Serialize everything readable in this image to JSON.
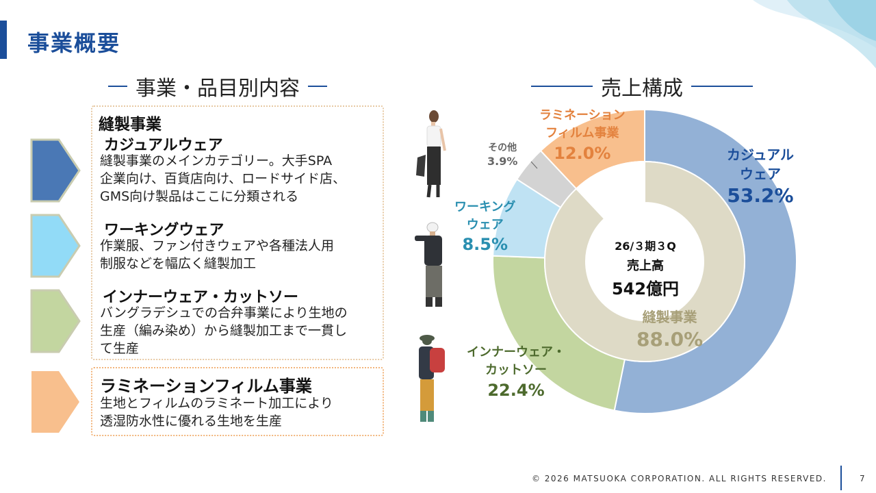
{
  "page": {
    "title": "事業概要",
    "footer": "© 2026 MATSUOKA CORPORATION. ALL RIGHTS RESERVED.",
    "page_number": "7"
  },
  "left": {
    "heading": "事業・品目別内容",
    "sewing": {
      "title": "縫製事業",
      "items": [
        {
          "title": "カジュアルウェア",
          "lines": [
            "縫製事業のメインカテゴリー。大手SPA",
            "企業向け、百貨店向け、ロードサイド店、",
            "GMS向け製品はここに分類される"
          ]
        },
        {
          "title": "ワーキングウェア",
          "lines": [
            "作業服、ファン付きウェアや各種法人用",
            "制服などを幅広く縫製加工"
          ]
        },
        {
          "title": "インナーウェア・カットソー",
          "lines": [
            "バングラデシュでの合弁事業により生地の",
            "生産（編み染め）から縫製加工まで一貫し",
            "て生産"
          ]
        }
      ]
    },
    "lamination": {
      "title": "ラミネーションフィルム事業",
      "lines": [
        "生地とフィルムのラミネート加工により",
        "透湿防水性に優れる生地を生産"
      ]
    }
  },
  "right": {
    "heading": "売上構成",
    "center": {
      "period": "26/３期３Q",
      "label": "売上高",
      "value": "542億円"
    }
  },
  "chart_data": {
    "type": "pie",
    "title": "売上構成",
    "unit": "%",
    "outer_ring": [
      {
        "name": "カジュアルウェア",
        "value": 53.2,
        "label": "53.2%",
        "color": "#93b1d6",
        "label_color": "#1b4e9a"
      },
      {
        "name": "インナーウェア・カットソー",
        "value": 22.4,
        "label": "22.4%",
        "color": "#c3d6a0",
        "label_color": "#4d6a2d"
      },
      {
        "name": "ワーキングウェア",
        "value": 8.5,
        "label": "8.5%",
        "color": "#bfe2f3",
        "label_color": "#2a8fb0"
      },
      {
        "name": "その他",
        "value": 3.9,
        "label": "3.9%",
        "color": "#d3d3d3",
        "label_color": "#666666"
      },
      {
        "name": "ラミネーションフィルム事業",
        "value": 12.0,
        "label": "12.0%",
        "color": "#f8bf8d",
        "label_color": "#e3823e"
      }
    ],
    "inner_ring": [
      {
        "name": "縫製事業",
        "value": 88.0,
        "label": "88.0%",
        "color": "#dedac6",
        "label_color": "#a79f78"
      },
      {
        "name": "ラミネーションフィルム事業",
        "value": 12.0,
        "color": "#ffffff"
      }
    ]
  },
  "colors": {
    "brand": "#1b4e9a",
    "casual": "#4a78b5",
    "working": "#92dbf7",
    "inner": "#c3d6a0",
    "lamination": "#f8bf8d"
  }
}
